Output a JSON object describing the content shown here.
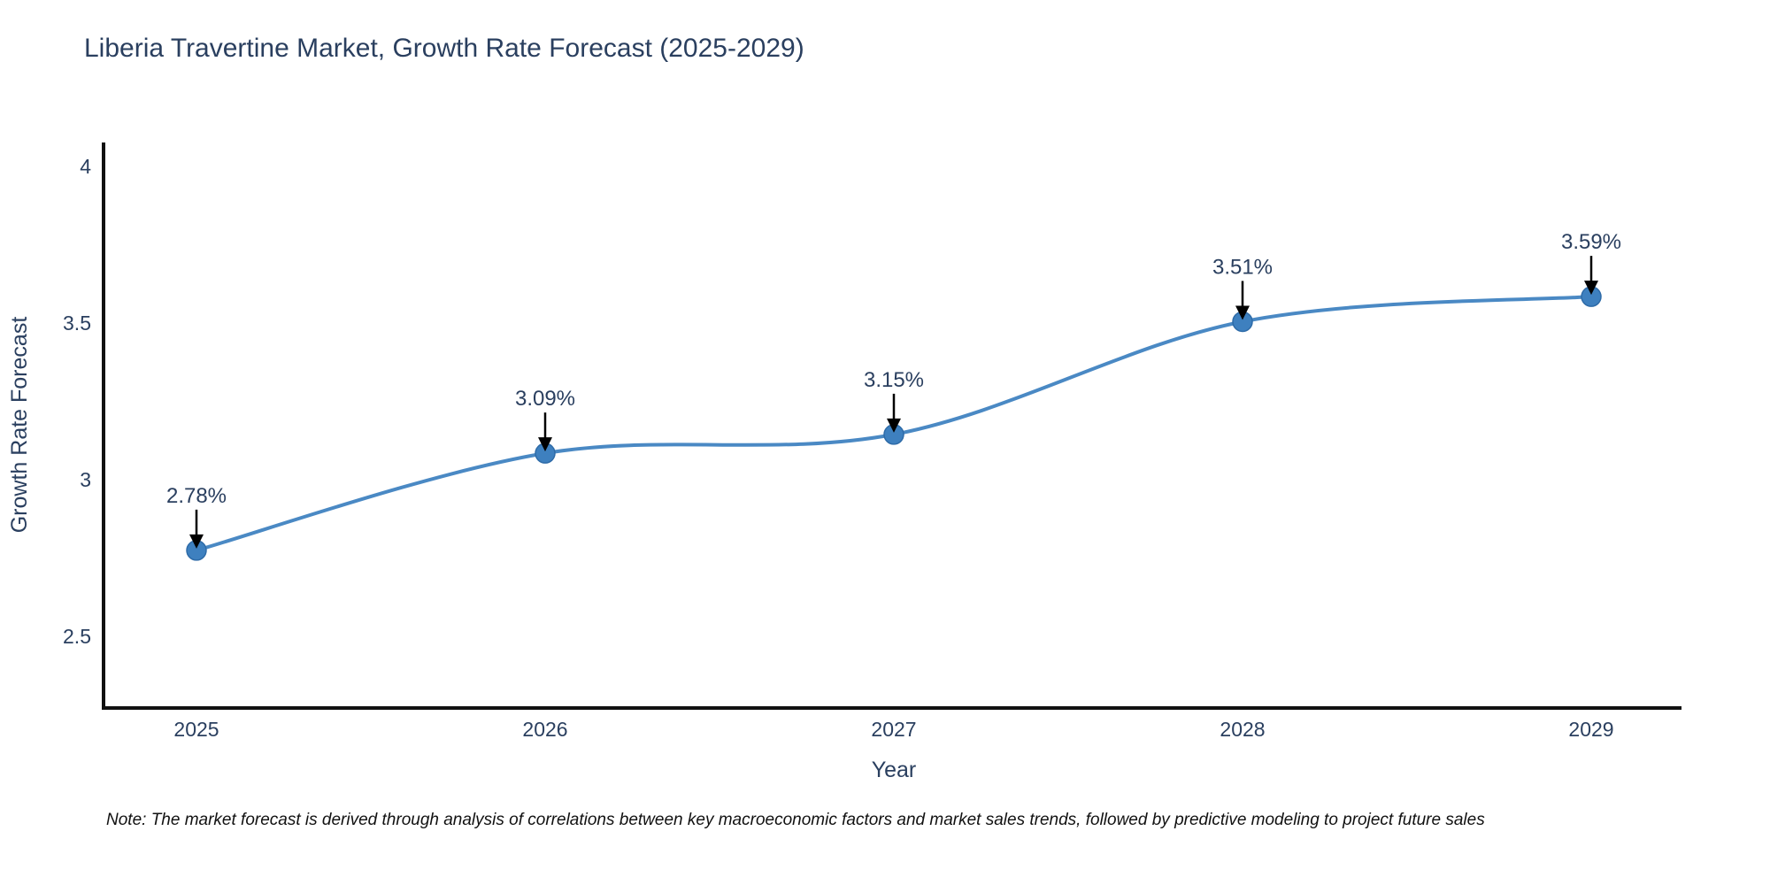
{
  "title": "Liberia Travertine Market, Growth Rate Forecast (2025-2029)",
  "note": "Note: The market forecast is derived through analysis of correlations between key macroeconomic factors and market sales trends, followed by predictive modeling to project future sales",
  "chart_data": {
    "type": "line",
    "title": "Liberia Travertine Market, Growth Rate Forecast (2025-2029)",
    "x": [
      "2025",
      "2026",
      "2027",
      "2028",
      "2029"
    ],
    "series": [
      {
        "name": "Growth Rate Forecast",
        "values": [
          2.78,
          3.09,
          3.15,
          3.51,
          3.59
        ]
      }
    ],
    "point_labels": [
      "2.78%",
      "3.09%",
      "3.15%",
      "3.51%",
      "3.59%"
    ],
    "xlabel": "Year",
    "ylabel": "Growth Rate Forecast",
    "yticks": [
      4,
      3.5,
      3,
      2.5
    ],
    "ylim": [
      2.27,
      4.07
    ],
    "line_shape": "spline",
    "grid": false,
    "legend_position": "none",
    "annotations_have_arrows": true,
    "colors": {
      "line": "#4a89c4",
      "marker": "#3e80bf",
      "marker_edge": "#2e6ba8",
      "arrow": "#000000",
      "text": "#2a3f5f",
      "axis": "#111111",
      "note_text": "#111111"
    }
  }
}
